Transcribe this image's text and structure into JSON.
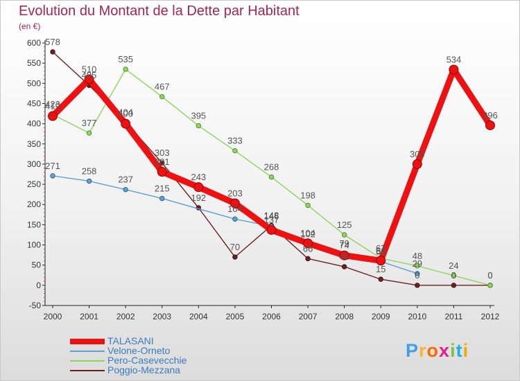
{
  "title": "Evolution du Montant de la Dette par Habitant",
  "unit": "(en €)",
  "logo": {
    "letters": [
      "P",
      "r",
      "o",
      "x",
      "i",
      "t",
      "i"
    ],
    "colors": [
      "#3fa0e6",
      "#ffb02e",
      "#ff6a00",
      "#e0208c",
      "#7cc342",
      "#1ab1e8",
      "#f2a900"
    ]
  },
  "chart_data": {
    "type": "line",
    "x": [
      "2000",
      "2001",
      "2002",
      "2003",
      "2004",
      "2005",
      "2006",
      "2007",
      "2008",
      "2009",
      "2010",
      "2011",
      "2012"
    ],
    "ylim": [
      -50,
      600
    ],
    "yticks": [
      "-50",
      "0",
      "50",
      "100",
      "150",
      "200",
      "250",
      "300",
      "350",
      "400",
      "450",
      "500",
      "550",
      "600"
    ],
    "grid": false,
    "legend_position": "bottom-left",
    "series": [
      {
        "name": "Poggio-Mezzana",
        "color": "#6b1f22",
        "values": [
          578,
          495,
          404,
          303,
          192,
          70,
          148,
          66,
          46,
          15,
          0,
          0,
          0
        ]
      },
      {
        "name": "Pero-Casevecchie",
        "color": "#8cd65c",
        "values": [
          423,
          377,
          535,
          467,
          395,
          333,
          268,
          198,
          125,
          67,
          48,
          24,
          0
        ]
      },
      {
        "name": "Velone-Orneto",
        "color": "#5d9fd1",
        "values": [
          271,
          258,
          237,
          215,
          null,
          164,
          146,
          102,
          79,
          59,
          29,
          null,
          null
        ]
      },
      {
        "name": "TALASANI",
        "color": "#ee1111",
        "values": [
          419,
          510,
          400,
          281,
          243,
          203,
          137,
          104,
          74,
          61,
          300,
          534,
          396
        ]
      }
    ],
    "legend_order": [
      "TALASANI",
      "Velone-Orneto",
      "Pero-Casevecchie",
      "Poggio-Mezzana"
    ]
  }
}
